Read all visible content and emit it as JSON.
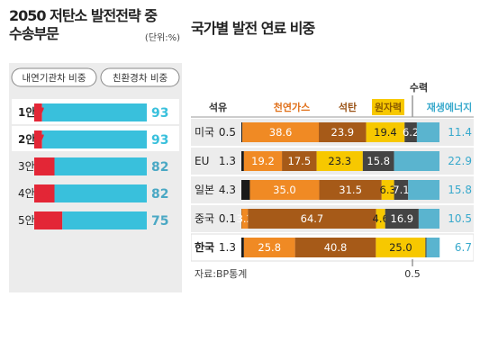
{
  "colors": {
    "ice": "#e32636",
    "eco": "#39c0dc",
    "oil": "#1a1a1a",
    "gas": "#f08a24",
    "coal": "#a65a18",
    "nuclear": "#f7c800",
    "hydro": "#444444",
    "renew": "#5ab4cf",
    "highlight_value": "#39c0dc",
    "label_gas": "#e0701a",
    "label_coal": "#9a5316",
    "label_hydro": "#333333",
    "label_renew": "#38a9cc"
  },
  "chart_data": [
    {
      "type": "bar",
      "title": "2050 저탄소 발전전략 중",
      "subtitle": "수송부문",
      "unit_label": "(단위:%)",
      "stacked": true,
      "horizontal": true,
      "categories": [
        "1안",
        "2안",
        "3안",
        "4안",
        "5안"
      ],
      "series": [
        {
          "name": "내연기관차 비중",
          "values": [
            7,
            7,
            18,
            18,
            25
          ]
        },
        {
          "name": "친환경차 비중",
          "values": [
            93,
            93,
            82,
            82,
            75
          ]
        }
      ],
      "ice_value_labels": [
        "7",
        "7",
        "18",
        "18",
        "25"
      ],
      "eco_value_labels": [
        "93",
        "93",
        "82",
        "82",
        "75"
      ],
      "highlighted_rows": [
        "1안",
        "2안"
      ],
      "xlim": [
        0,
        100
      ]
    },
    {
      "type": "bar",
      "title": "국가별 발전 연료 비중",
      "stacked": true,
      "horizontal": true,
      "categories": [
        "미국",
        "EU",
        "일본",
        "중국",
        "한국"
      ],
      "series": [
        {
          "name": "석유",
          "values": [
            0.5,
            1.3,
            4.3,
            0.1,
            1.3
          ]
        },
        {
          "name": "천연가스",
          "values": [
            38.6,
            19.2,
            35.0,
            3.2,
            25.8
          ]
        },
        {
          "name": "석탄",
          "values": [
            23.9,
            17.5,
            31.5,
            64.7,
            40.8
          ]
        },
        {
          "name": "원자력",
          "values": [
            19.4,
            23.3,
            6.3,
            4.6,
            25.0
          ]
        },
        {
          "name": "수력",
          "values": [
            6.2,
            15.8,
            7.1,
            16.9,
            0.5
          ]
        },
        {
          "name": "재생에너지",
          "values": [
            11.4,
            22.9,
            15.8,
            10.5,
            6.7
          ]
        }
      ],
      "oil_labels": [
        "0.5",
        "1.3",
        "4.3",
        "0.1",
        "1.3"
      ],
      "value_labels": [
        [
          "38.6",
          "23.9",
          "19.4",
          "6.2"
        ],
        [
          "19.2",
          "17.5",
          "23.3",
          "15.8"
        ],
        [
          "35.0",
          "31.5",
          "6.3",
          "7.1"
        ],
        [
          "3.2",
          "64.7",
          "4.6",
          "16.9"
        ],
        [
          "25.8",
          "40.8",
          "25.0",
          ""
        ]
      ],
      "renew_labels": [
        "11.4",
        "22.9",
        "15.8",
        "10.5",
        "6.7"
      ],
      "below_note": "0.5",
      "highlighted_rows": [
        "한국"
      ],
      "source": "자료:BP통계"
    }
  ]
}
